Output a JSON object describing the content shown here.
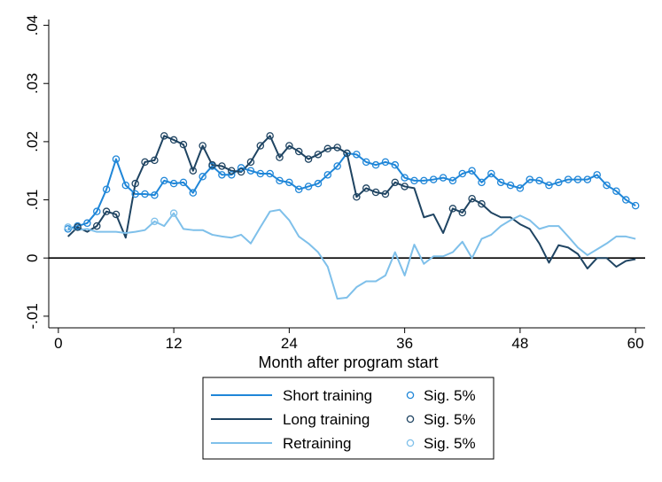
{
  "chart_data": {
    "type": "line",
    "xlabel": "Month after program start",
    "ylabel": "",
    "xlim": [
      -1,
      61
    ],
    "ylim": [
      -0.012,
      0.041
    ],
    "x_ticks": [
      0,
      12,
      24,
      36,
      48,
      60
    ],
    "x_tick_labels": [
      "0",
      "12",
      "24",
      "36",
      "48",
      "60"
    ],
    "y_ticks": [
      -0.01,
      0,
      0.01,
      0.02,
      0.03,
      0.04
    ],
    "y_tick_labels": [
      "-.01",
      "0",
      ".01",
      ".02",
      ".03",
      ".04"
    ],
    "reference_line_y": 0,
    "legend_position": "bottom-center",
    "series": [
      {
        "name": "Short training",
        "marker_label": "Sig. 5%",
        "color": "#1f86d8",
        "values": [
          0.005,
          0.0055,
          0.006,
          0.008,
          0.0118,
          0.017,
          0.0125,
          0.011,
          0.011,
          0.0108,
          0.0133,
          0.0128,
          0.013,
          0.0112,
          0.014,
          0.0158,
          0.0143,
          0.0143,
          0.0155,
          0.015,
          0.0145,
          0.0145,
          0.0133,
          0.013,
          0.0118,
          0.0123,
          0.0128,
          0.0143,
          0.0158,
          0.018,
          0.0178,
          0.0165,
          0.016,
          0.0165,
          0.016,
          0.0138,
          0.0133,
          0.0133,
          0.0135,
          0.0138,
          0.0133,
          0.0145,
          0.015,
          0.013,
          0.0145,
          0.013,
          0.0125,
          0.012,
          0.0135,
          0.0133,
          0.0125,
          0.013,
          0.0135,
          0.0135,
          0.0135,
          0.0143,
          0.0125,
          0.0115,
          0.01,
          0.009
        ],
        "significant": [
          true,
          true,
          true,
          true,
          true,
          true,
          true,
          true,
          true,
          true,
          true,
          true,
          true,
          true,
          true,
          true,
          true,
          true,
          true,
          true,
          true,
          true,
          true,
          true,
          true,
          true,
          true,
          true,
          true,
          true,
          true,
          true,
          true,
          true,
          true,
          true,
          true,
          true,
          true,
          true,
          true,
          true,
          true,
          true,
          true,
          true,
          true,
          true,
          true,
          true,
          true,
          true,
          true,
          true,
          true,
          true,
          true,
          true,
          true,
          true
        ]
      },
      {
        "name": "Long training",
        "marker_label": "Sig. 5%",
        "color": "#1f4462",
        "values": [
          0.0037,
          0.0053,
          0.0045,
          0.0055,
          0.008,
          0.0075,
          0.0035,
          0.0128,
          0.0165,
          0.0168,
          0.021,
          0.0203,
          0.0195,
          0.015,
          0.0193,
          0.016,
          0.0158,
          0.015,
          0.0148,
          0.0165,
          0.0193,
          0.021,
          0.0173,
          0.0193,
          0.0183,
          0.017,
          0.0178,
          0.0188,
          0.019,
          0.018,
          0.0105,
          0.012,
          0.0113,
          0.011,
          0.013,
          0.0123,
          0.012,
          0.007,
          0.0075,
          0.0043,
          0.0085,
          0.0078,
          0.0102,
          0.0093,
          0.0078,
          0.007,
          0.007,
          0.0058,
          0.005,
          0.0025,
          -0.0008,
          0.0022,
          0.0018,
          0.0007,
          -0.0018,
          0.0,
          0.0,
          -0.0015,
          -0.0005,
          -0.0002
        ],
        "significant": [
          false,
          true,
          false,
          true,
          true,
          true,
          false,
          true,
          true,
          true,
          true,
          true,
          true,
          true,
          true,
          true,
          true,
          true,
          true,
          true,
          true,
          true,
          true,
          true,
          true,
          true,
          true,
          true,
          true,
          true,
          true,
          true,
          true,
          true,
          true,
          true,
          false,
          false,
          false,
          false,
          true,
          true,
          true,
          true,
          false,
          false,
          false,
          false,
          false,
          false,
          false,
          false,
          false,
          false,
          false,
          false,
          false,
          false,
          false,
          false
        ]
      },
      {
        "name": "Retraining",
        "marker_label": "Sig. 5%",
        "color": "#7fc0ea",
        "values": [
          0.0053,
          0.0048,
          0.005,
          0.0045,
          0.0045,
          0.0045,
          0.0043,
          0.0045,
          0.0048,
          0.0063,
          0.0055,
          0.0077,
          0.005,
          0.0048,
          0.0048,
          0.004,
          0.0037,
          0.0035,
          0.004,
          0.0025,
          0.0053,
          0.008,
          0.0083,
          0.0065,
          0.0037,
          0.0025,
          0.001,
          -0.0015,
          -0.007,
          -0.0068,
          -0.005,
          -0.004,
          -0.004,
          -0.003,
          0.001,
          -0.003,
          0.0023,
          -0.001,
          0.0003,
          0.0003,
          0.001,
          0.0028,
          0.0,
          0.0033,
          0.004,
          0.0055,
          0.0065,
          0.0073,
          0.0065,
          0.005,
          0.0055,
          0.0055,
          0.0037,
          0.0018,
          0.0005,
          0.0015,
          0.0025,
          0.0037,
          0.0037,
          0.0033
        ],
        "significant": [
          true,
          false,
          false,
          false,
          false,
          false,
          false,
          false,
          false,
          true,
          false,
          true,
          false,
          false,
          false,
          false,
          false,
          false,
          false,
          false,
          false,
          false,
          false,
          false,
          false,
          false,
          false,
          false,
          false,
          false,
          false,
          false,
          false,
          false,
          false,
          false,
          false,
          false,
          false,
          false,
          false,
          false,
          false,
          false,
          false,
          false,
          false,
          false,
          false,
          false,
          false,
          false,
          false,
          false,
          false,
          false,
          false,
          false,
          false,
          false
        ]
      }
    ]
  }
}
